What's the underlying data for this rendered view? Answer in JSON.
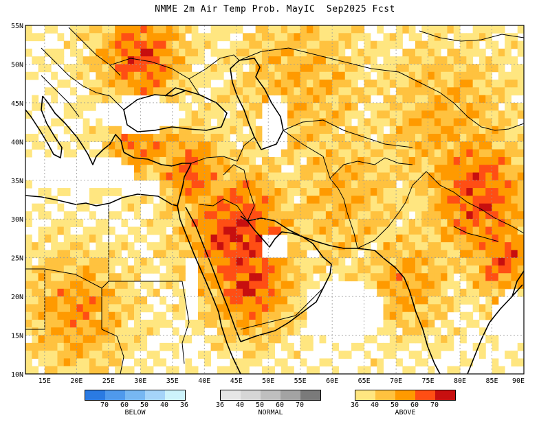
{
  "title": "NMME 2m Air Temp Prob. MayIC  Sep2025 Fcst",
  "axes": {
    "lat_labels": [
      "55N",
      "50N",
      "45N",
      "40N",
      "35N",
      "30N",
      "25N",
      "20N",
      "15N",
      "10N"
    ],
    "lon_labels": [
      "15E",
      "20E",
      "25E",
      "30E",
      "35E",
      "40E",
      "45E",
      "50E",
      "55E",
      "60E",
      "65E",
      "70E",
      "75E",
      "80E",
      "85E",
      "90E"
    ],
    "lat_range": [
      10,
      55
    ],
    "lon_range": [
      12,
      90
    ],
    "grid": "dotted"
  },
  "colors": {
    "above": [
      "#ffe680",
      "#ffc23f",
      "#ff9a00",
      "#ff4e14",
      "#c70f0f"
    ],
    "below": [
      "#2a7ae2",
      "#4f99ec",
      "#77b7f2",
      "#a5d4f9",
      "#cdf3fb"
    ],
    "normal": [
      "#e6e6e6",
      "#d6d6d6",
      "#bfbfbf",
      "#a3a3a3",
      "#7a7a7a"
    ]
  },
  "legend": {
    "below": {
      "caption": "BELOW",
      "ticks": [
        "70",
        "60",
        "50",
        "40",
        "36"
      ]
    },
    "normal": {
      "caption": "NORMAL",
      "ticks": [
        "36",
        "40",
        "50",
        "60",
        "70"
      ]
    },
    "above": {
      "caption": "ABOVE",
      "ticks": [
        "36",
        "40",
        "50",
        "60",
        "70"
      ]
    }
  }
}
